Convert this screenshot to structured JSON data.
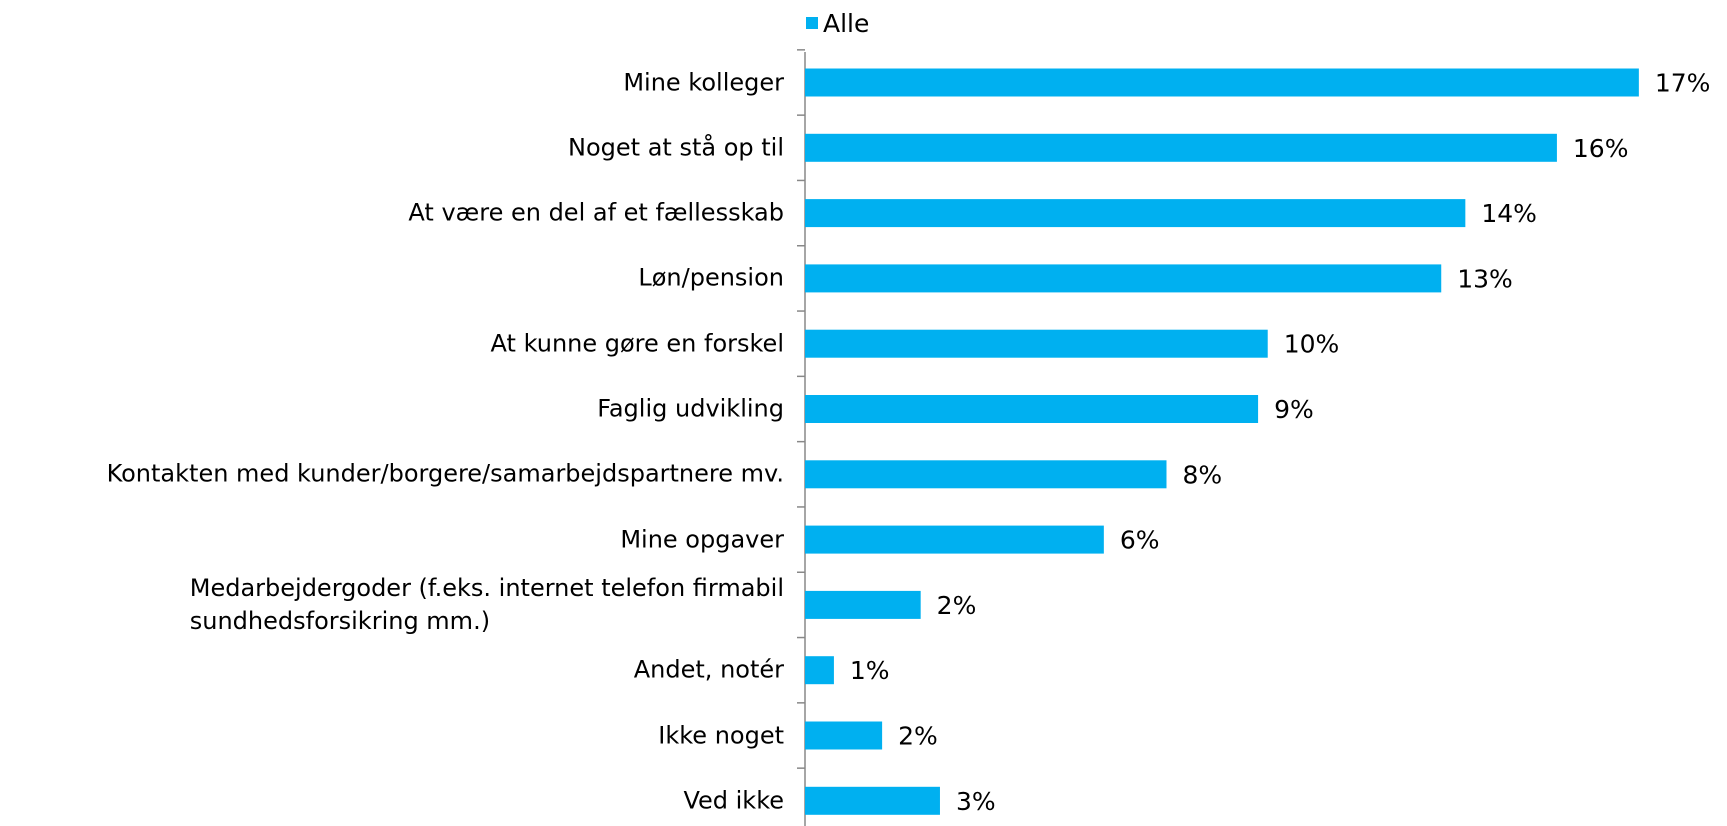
{
  "chart_data": {
    "type": "bar",
    "orientation": "horizontal",
    "legend": "top",
    "categories": [
      "Mine kolleger",
      "Noget at stå op til",
      "At være en del af et fællesskab",
      "Løn/pension",
      "At kunne gøre en forskel",
      "Faglig udvikling",
      "Kontakten med kunder/borgere/samarbejdspartnere mv.",
      "Mine opgaver",
      "Medarbejdergoder (f.eks. internet telefon firmabil\nsundhedsforsikring mm.)",
      "Andet, notér",
      "Ikke noget",
      "Ved ikke"
    ],
    "series": [
      {
        "name": "Alle",
        "color": "#00b0f0",
        "values": [
          17.3,
          15.6,
          13.7,
          13.2,
          9.6,
          9.4,
          7.5,
          6.2,
          2.4,
          0.6,
          1.6,
          2.8
        ],
        "value_labels": [
          "17%",
          "16%",
          "14%",
          "13%",
          "10%",
          "9%",
          "8%",
          "6%",
          "2%",
          "1%",
          "2%",
          "3%"
        ]
      }
    ]
  }
}
